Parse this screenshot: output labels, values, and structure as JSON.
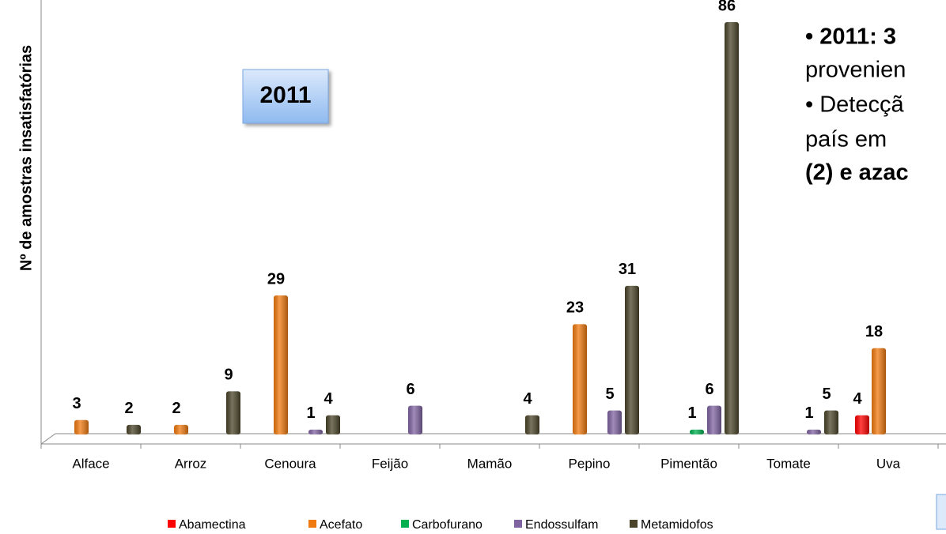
{
  "chart_data": {
    "type": "bar",
    "title": "2011",
    "y_label": "Nº de amostras insatisfatórias",
    "categories": [
      "Alface",
      "Arroz",
      "Cenoura",
      "Feijão",
      "Mamão",
      "Pepino",
      "Pimentão",
      "Tomate",
      "Uva"
    ],
    "series": [
      {
        "name": "Abamectina",
        "color": "#ff0000",
        "values": [
          null,
          null,
          null,
          null,
          null,
          null,
          null,
          null,
          4
        ]
      },
      {
        "name": "Acefato",
        "color": "#f07a10",
        "values": [
          3,
          2,
          29,
          null,
          null,
          23,
          null,
          null,
          18
        ]
      },
      {
        "name": "Carbofurano",
        "color": "#00b050",
        "values": [
          null,
          null,
          null,
          null,
          null,
          null,
          1,
          null,
          null
        ]
      },
      {
        "name": "Endossulfam",
        "color": "#8064a2",
        "values": [
          null,
          null,
          1,
          6,
          null,
          5,
          6,
          1,
          null
        ]
      },
      {
        "name": "Metamidofos",
        "color": "#4a452a",
        "values": [
          2,
          9,
          4,
          null,
          4,
          31,
          86,
          5,
          null
        ]
      }
    ],
    "ylim": [
      0,
      86
    ],
    "legend": "bottom",
    "annotations": [
      "• 2011: 3",
      "provenien",
      "• Detecçã",
      "país em",
      "(2) e azac"
    ]
  }
}
